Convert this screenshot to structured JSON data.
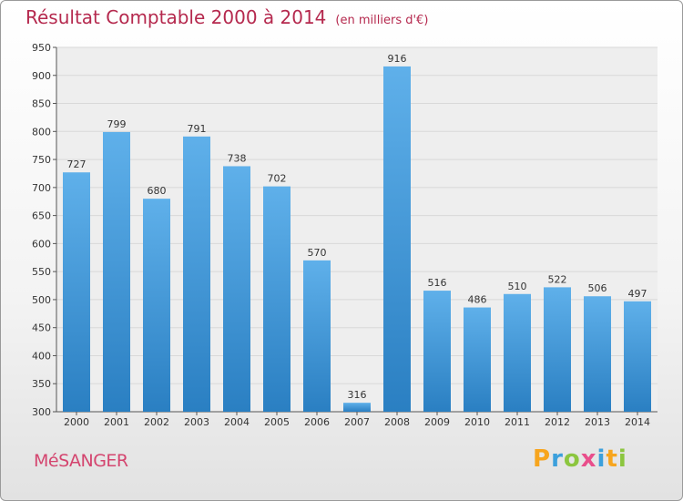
{
  "title": "Résultat Comptable 2000 à 2014",
  "subtitle": "(en milliers d'€)",
  "city": "MéSANGER",
  "logo_text": "Proxiti",
  "colors": {
    "title": "#b5294e",
    "bar_top": "#5fb0ea",
    "bar_bottom": "#2a7fc2",
    "grid": "#d8d8d8"
  },
  "chart_data": {
    "type": "bar",
    "title": "Résultat Comptable 2000 à 2014",
    "subtitle": "(en milliers d'€)",
    "categories": [
      "2000",
      "2001",
      "2002",
      "2003",
      "2004",
      "2005",
      "2006",
      "2007",
      "2008",
      "2009",
      "2010",
      "2011",
      "2012",
      "2013",
      "2014"
    ],
    "values": [
      727,
      799,
      680,
      791,
      738,
      702,
      570,
      316,
      916,
      516,
      486,
      510,
      522,
      506,
      497
    ],
    "ylim": [
      300,
      950
    ],
    "yticks": [
      300,
      350,
      400,
      450,
      500,
      550,
      600,
      650,
      700,
      750,
      800,
      850,
      900,
      950
    ],
    "grid": true
  }
}
